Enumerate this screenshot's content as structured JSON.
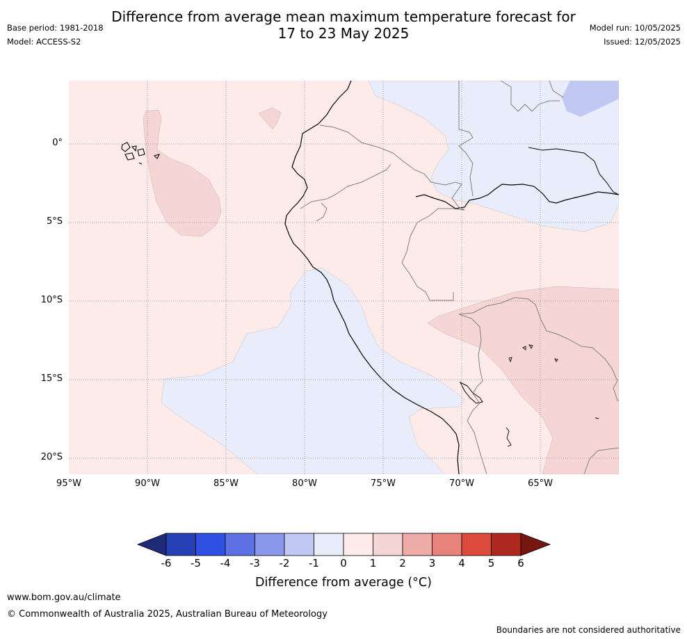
{
  "title": {
    "line1": "Difference from average mean maximum temperature forecast for",
    "line2": "17 to 23 May 2025"
  },
  "meta": {
    "base_period": "Base period: 1981-2018",
    "model": "Model: ACCESS-S2",
    "model_run": "Model run: 10/05/2025",
    "issued": "Issued: 12/05/2025"
  },
  "map": {
    "lat_labels": [
      "0°",
      "5°S",
      "10°S",
      "15°S",
      "20°S"
    ],
    "lon_labels": [
      "95°W",
      "90°W",
      "85°W",
      "80°W",
      "75°W",
      "70°W",
      "65°W"
    ],
    "colors": {
      "ocean_base": "#fcebe9",
      "land_neutral": "#fcebe9",
      "anomaly_neg1": "#e8ecfb",
      "anomaly_neg2": "#c1c9f3",
      "anomaly_pos2": "#f6d6d5",
      "coast": "#000000",
      "border": "#808080",
      "gridline": "#888888"
    }
  },
  "colorbar": {
    "ticks": [
      "-6",
      "-5",
      "-4",
      "-3",
      "-2",
      "-1",
      "0",
      "1",
      "2",
      "3",
      "4",
      "5",
      "6"
    ],
    "colors": [
      "#1f2a78",
      "#273fb4",
      "#3151e2",
      "#5b71e4",
      "#8a98ec",
      "#c1c9f3",
      "#e8ecfb",
      "#fcebe9",
      "#f6d6d5",
      "#efaba7",
      "#e8837c",
      "#dc4a3c",
      "#ae2820",
      "#76170f"
    ],
    "label": "Difference from average (°C)"
  },
  "footer": {
    "website": "www.bom.gov.au/climate",
    "copyright": "© Commonwealth of Australia 2025, Australian Bureau of Meteorology",
    "disclaimer": "Boundaries are not considered authoritative"
  }
}
